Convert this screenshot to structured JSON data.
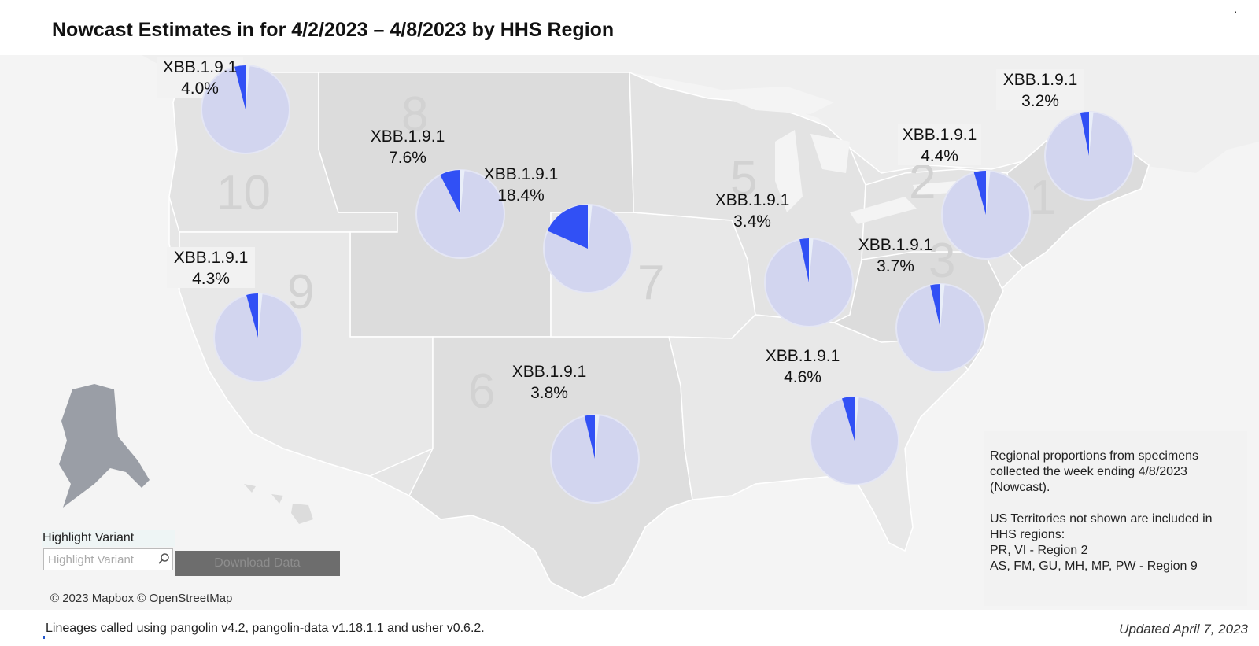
{
  "title": "Nowcast Estimates in for 4/2/2023 – 4/8/2023 by HHS Region",
  "map": {
    "regions": [
      {
        "number": "1"
      },
      {
        "number": "2"
      },
      {
        "number": "3"
      },
      {
        "number": "5"
      },
      {
        "number": "6"
      },
      {
        "number": "7"
      },
      {
        "number": "8"
      },
      {
        "number": "9"
      },
      {
        "number": "10"
      }
    ],
    "pies": [
      {
        "region": "10",
        "variant": "XBB.1.9.1",
        "percent_label": "4.0%",
        "share": 0.04
      },
      {
        "region": "8",
        "variant": "XBB.1.9.1",
        "percent_label": "7.6%",
        "share": 0.076
      },
      {
        "region": "7",
        "variant": "XBB.1.9.1",
        "percent_label": "18.4%",
        "share": 0.184
      },
      {
        "region": "9",
        "variant": "XBB.1.9.1",
        "percent_label": "4.3%",
        "share": 0.043
      },
      {
        "region": "6",
        "variant": "XBB.1.9.1",
        "percent_label": "3.8%",
        "share": 0.038
      },
      {
        "region": "5",
        "variant": "XBB.1.9.1",
        "percent_label": "3.4%",
        "share": 0.034
      },
      {
        "region": "4",
        "variant": "XBB.1.9.1",
        "percent_label": "4.6%",
        "share": 0.046
      },
      {
        "region": "3",
        "variant": "XBB.1.9.1",
        "percent_label": "3.7%",
        "share": 0.037
      },
      {
        "region": "2",
        "variant": "XBB.1.9.1",
        "percent_label": "4.4%",
        "share": 0.044
      },
      {
        "region": "1",
        "variant": "XBB.1.9.1",
        "percent_label": "3.2%",
        "share": 0.032
      }
    ],
    "colors": {
      "highlight": "#3150f5",
      "other": "#d2d5ef",
      "pie_edge": "#e4e6f4",
      "land": "#e6e6e6",
      "land_alt": "#dcdcdc",
      "water": "#f4f4f4"
    },
    "attribution": "© 2023 Mapbox © OpenStreetMap"
  },
  "info": {
    "para1": "Regional proportions from specimens collected the week ending 4/8/2023 (Nowcast).",
    "para2": "US Territories not shown are included in HHS regions:",
    "territories": [
      "PR, VI - Region 2",
      "AS, FM, GU, MH, MP, PW - Region 9"
    ]
  },
  "controls": {
    "highlight_label": "Highlight Variant",
    "highlight_placeholder": "Highlight Variant",
    "download_label": "Download Data"
  },
  "footer": {
    "note": "Lineages called using pangolin v4.2, pangolin-data v1.18.1.1 and usher v0.6.2.",
    "updated": "Updated April 7, 2023"
  }
}
